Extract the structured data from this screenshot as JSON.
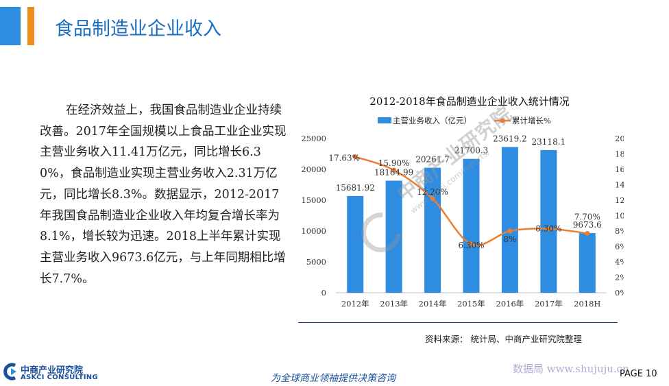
{
  "header": {
    "title": "食品制造业企业收入"
  },
  "body": {
    "paragraph": "在经济效益上，我国食品制造业企业持续改善。2017年全国规模以上食品工业企业实现主营业务收入11.41万亿元，同比增长6.30%，食品制造业实现主营业务收入2.31万亿元，同比增长8.3%。数据显示，2012-2017年我国食品制造业企业收入年均复合增长率为8.1%，增长较为迅速。2018上半年累计实现主营业务收入9673.6亿元，与上年同期相比增长7.7%。"
  },
  "chart_data": {
    "type": "bar",
    "title": "2012-2018年食品制造业企业收入统计情况",
    "categories": [
      "2012年",
      "2013年",
      "2014年",
      "2015年",
      "2016年",
      "2017年",
      "2018H"
    ],
    "series": [
      {
        "name": "主营业务收入（亿元）",
        "type": "bar",
        "axis": "left",
        "values": [
          15681.92,
          18164.99,
          20261.7,
          21700.3,
          23619.2,
          23118.1,
          9673.6
        ],
        "labels": [
          "15681.92",
          "18164.99",
          "20261.7",
          "21700.3",
          "23619.2",
          "23118.1",
          "9673.6"
        ],
        "color": "#2e8de0"
      },
      {
        "name": "累计增长%",
        "type": "line",
        "axis": "right",
        "values": [
          17.63,
          15.9,
          12.2,
          6.3,
          8.0,
          8.3,
          7.7
        ],
        "labels": [
          "17.63%",
          "15.90%",
          "12.20%",
          "6.30%",
          "8%",
          "8.30%",
          "7.70%"
        ],
        "color": "#ed7d31"
      }
    ],
    "y_left": {
      "min": 0,
      "max": 25000,
      "ticks": [
        "0",
        "5000",
        "10000",
        "15000",
        "20000",
        "25000"
      ]
    },
    "y_right": {
      "min": 0,
      "max": 20,
      "ticks": [
        "0%",
        "2%",
        "4%",
        "6%",
        "8%",
        "10%",
        "12%",
        "14%",
        "16%",
        "18%",
        "20%"
      ]
    },
    "legend_position": "top"
  },
  "source": "资料来源： 统计局、中商产业研究院整理",
  "footer": {
    "logo_cn": "中商产业研究院",
    "logo_en": "ASKCI CONSULTING",
    "slogan": "为全球商业领袖提供决策咨询",
    "watermark": "数据局 www.shujuju.cn",
    "page": "PAGE 10"
  },
  "watermark": {
    "brand": "中商产业研究院",
    "url": "www.askci.com/reports/"
  }
}
